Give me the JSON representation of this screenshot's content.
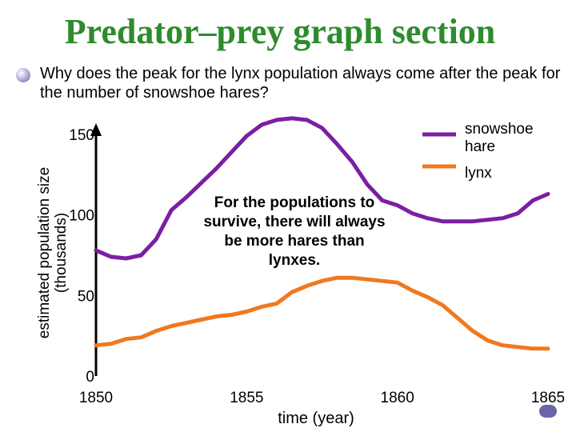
{
  "slide": {
    "title": "Predator–prey graph section",
    "question": "Why does the peak for the lynx population always come after the peak for the number of snowshoe hares?",
    "callout": "For the populations to survive, there will always be more hares than lynxes."
  },
  "chart_data": {
    "type": "line",
    "ylabel": "estimated population size (thousands)",
    "xlabel": "time (year)",
    "xlim": [
      1850,
      1865
    ],
    "ylim": [
      0,
      150
    ],
    "x_ticks": [
      "1850",
      "1855",
      "1860",
      "1865"
    ],
    "y_ticks": [
      "0",
      "50",
      "100",
      "150"
    ],
    "legend_position": "top-right",
    "series": [
      {
        "name": "snowshoe hare",
        "color": "#7b1fa2",
        "x": [
          1850.0,
          1850.5,
          1851.0,
          1851.5,
          1852.0,
          1852.5,
          1853.0,
          1853.5,
          1854.0,
          1854.5,
          1855.0,
          1855.5,
          1856.0,
          1856.5,
          1857.0,
          1857.5,
          1858.0,
          1858.5,
          1859.0,
          1859.5,
          1860.0,
          1860.5,
          1861.0,
          1861.5,
          1862.0,
          1862.5,
          1863.0,
          1863.5,
          1864.0,
          1864.5,
          1865.0
        ],
        "y": [
          78,
          74,
          73,
          75,
          85,
          103,
          111,
          120,
          129,
          139,
          149,
          156,
          159,
          160,
          159,
          154,
          144,
          133,
          119,
          109,
          106,
          101,
          98,
          96,
          96,
          96,
          97,
          98,
          101,
          109,
          113
        ]
      },
      {
        "name": "lynx",
        "color": "#f07820",
        "x": [
          1850.0,
          1850.5,
          1851.0,
          1851.5,
          1852.0,
          1852.5,
          1853.0,
          1853.5,
          1854.0,
          1854.5,
          1855.0,
          1855.5,
          1856.0,
          1856.5,
          1857.0,
          1857.5,
          1858.0,
          1858.5,
          1859.0,
          1859.5,
          1860.0,
          1860.5,
          1861.0,
          1861.5,
          1862.0,
          1862.5,
          1863.0,
          1863.5,
          1864.0,
          1864.5,
          1865.0
        ],
        "y": [
          19,
          20,
          23,
          24,
          28,
          31,
          33,
          35,
          37,
          38,
          40,
          43,
          45,
          52,
          56,
          59,
          61,
          61,
          60,
          59,
          58,
          53,
          49,
          44,
          36,
          28,
          22,
          19,
          18,
          17,
          17
        ]
      }
    ]
  }
}
